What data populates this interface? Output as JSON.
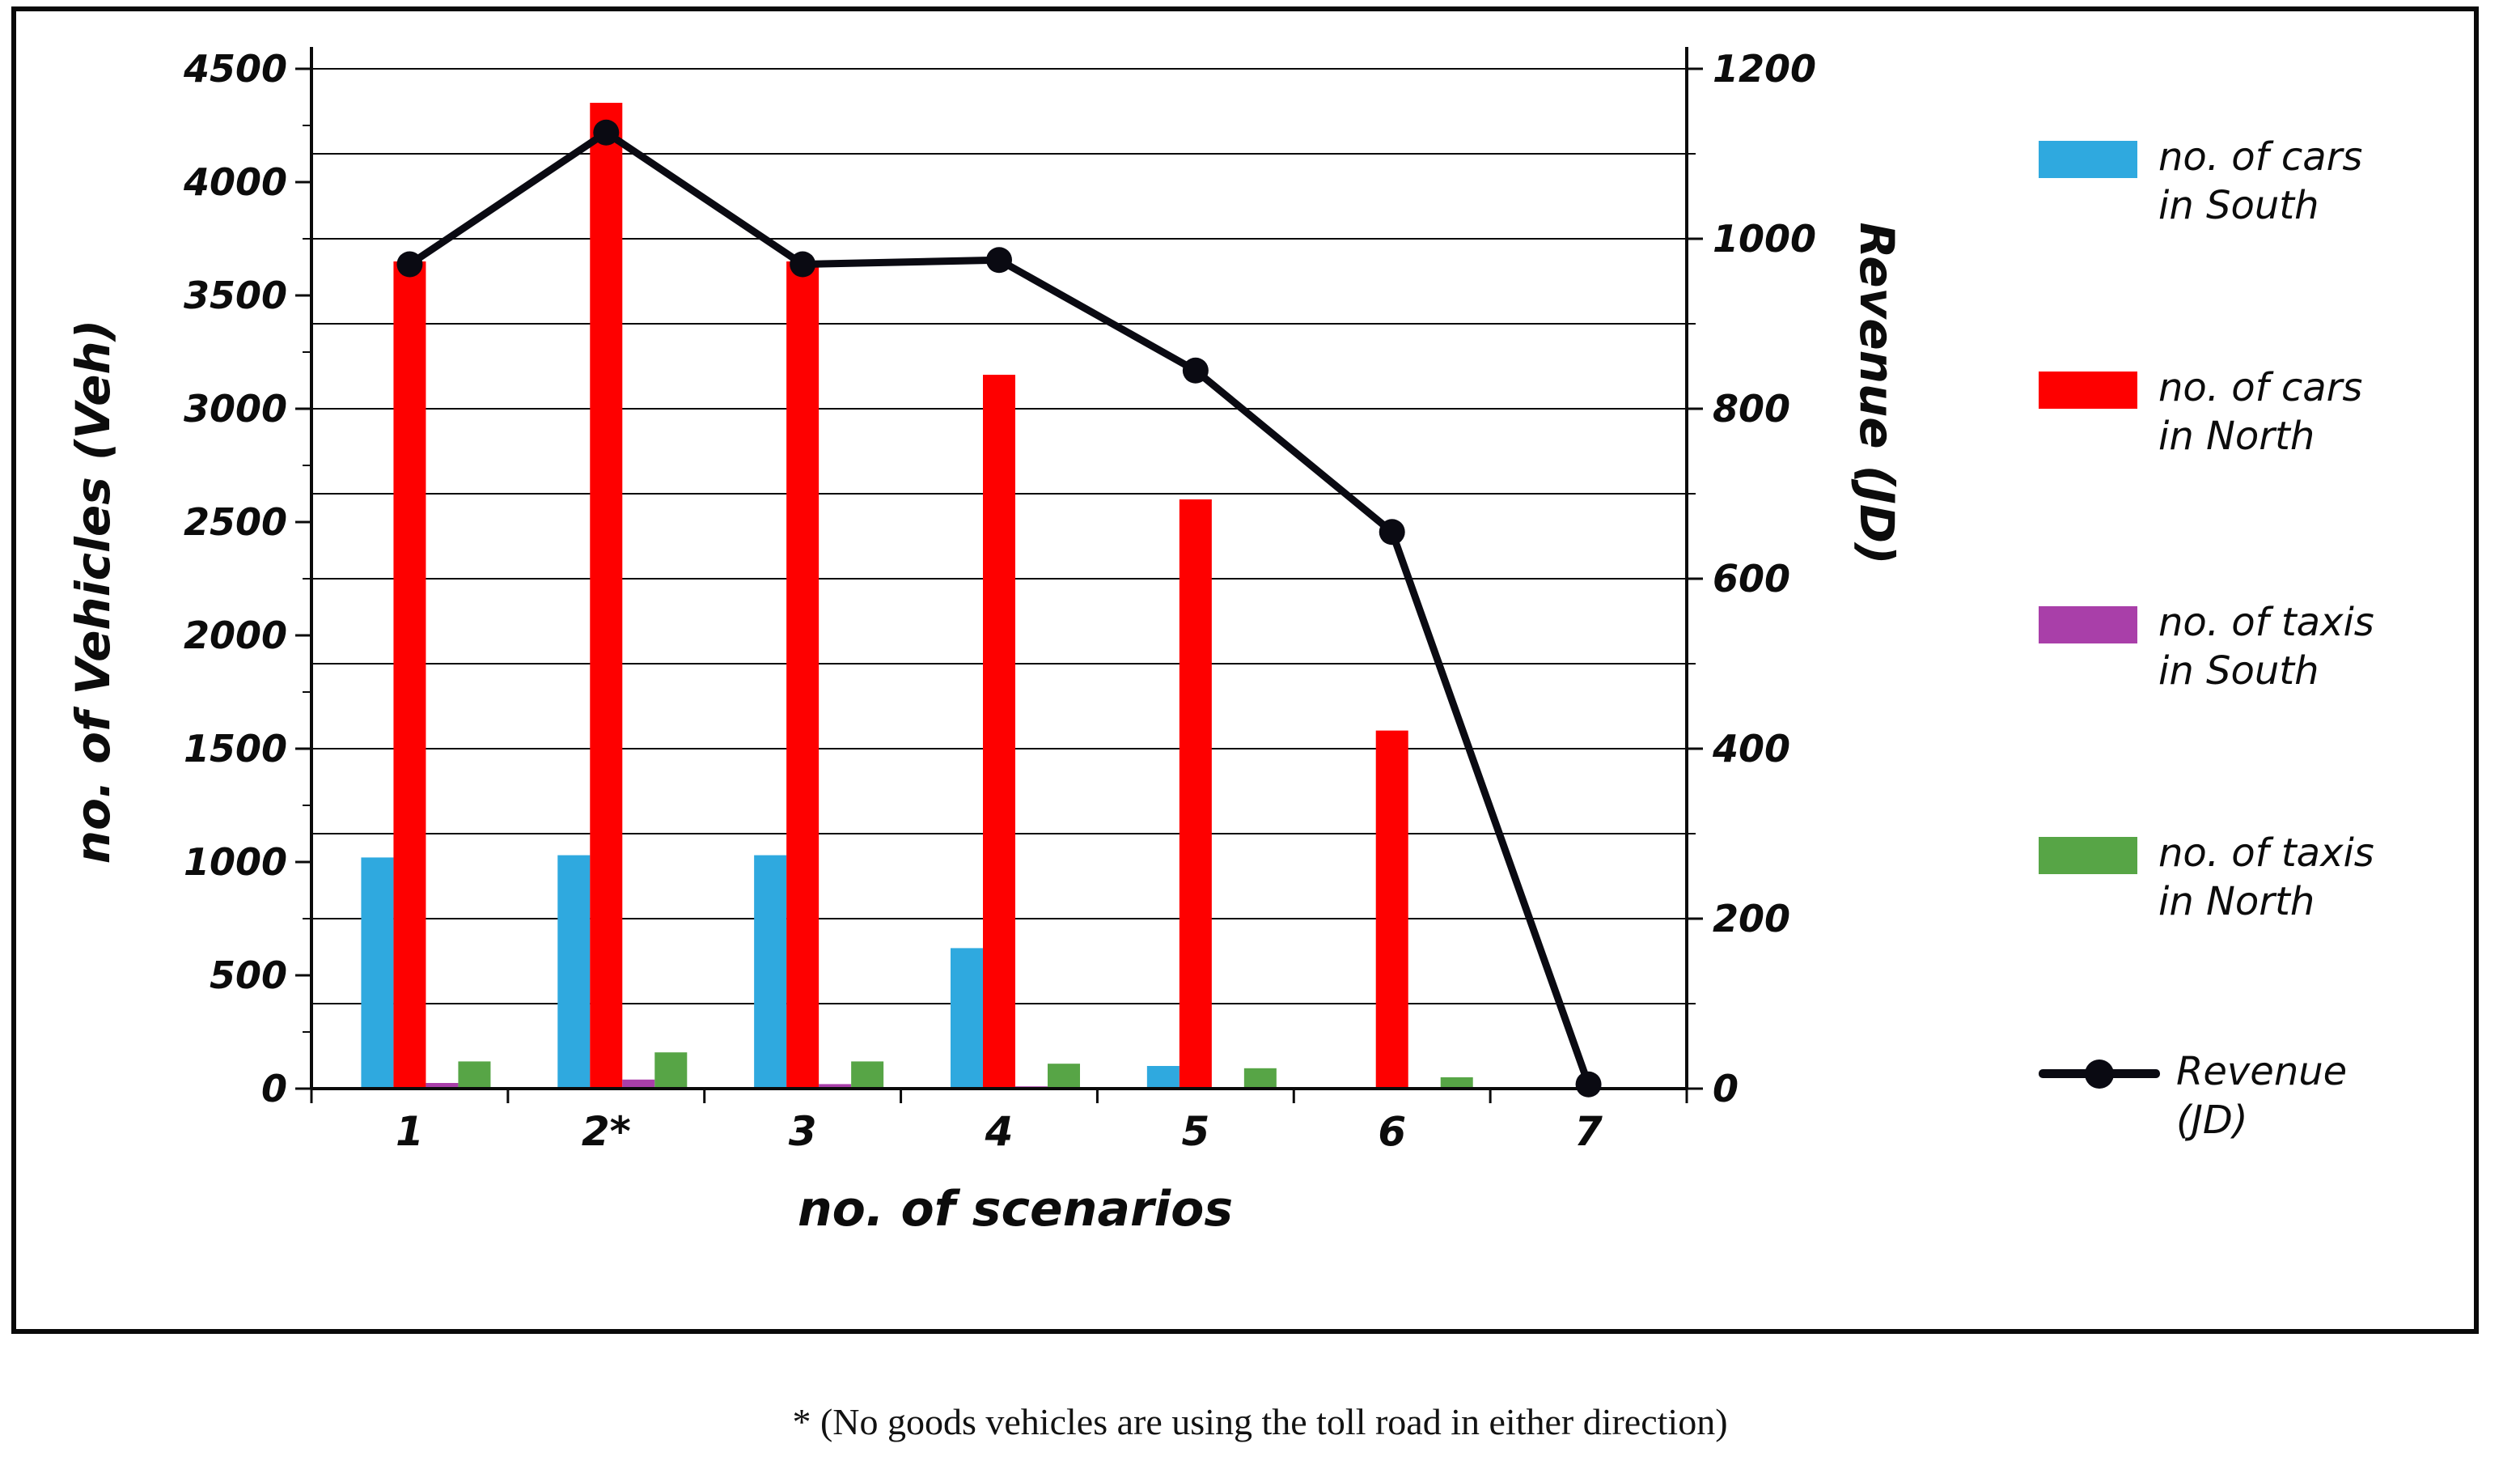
{
  "footnote": "* (No goods vehicles are using the toll road in either direction)",
  "chart_data": {
    "type": "bar",
    "subtype": "combo-bar-line",
    "title": "",
    "xlabel": "no. of scenarios",
    "categories": [
      "1",
      "2*",
      "3",
      "4",
      "5",
      "6",
      "7"
    ],
    "left_axis": {
      "label": "no. of Vehicles (Veh)",
      "min": 0,
      "max": 4500,
      "tick_step": 500
    },
    "right_axis": {
      "label": "Revenue (JD)",
      "min": 0,
      "max": 1200,
      "tick_step": 200
    },
    "gridlines": {
      "on": true,
      "axis": "right",
      "step": 100
    },
    "legend_position": "right",
    "series": [
      {
        "key": "cars-south",
        "name": "no. of cars in South",
        "type": "bar",
        "axis": "left",
        "color": "#2FA9DF",
        "values": [
          1020,
          1030,
          1030,
          620,
          100,
          0,
          0
        ]
      },
      {
        "key": "cars-north",
        "name": "no. of cars in North",
        "type": "bar",
        "axis": "left",
        "color": "#FE0000",
        "values": [
          3650,
          4350,
          3650,
          3150,
          2600,
          1580,
          0
        ]
      },
      {
        "key": "taxis-south",
        "name": "no. of taxis in South",
        "type": "bar",
        "axis": "left",
        "color": "#A93FA9",
        "values": [
          25,
          40,
          20,
          10,
          0,
          0,
          0
        ]
      },
      {
        "key": "taxis-north",
        "name": "no. of taxis in North",
        "type": "bar",
        "axis": "left",
        "color": "#57A546",
        "values": [
          120,
          160,
          120,
          110,
          90,
          50,
          0
        ]
      },
      {
        "key": "revenue",
        "name": "Revenue (JD)",
        "type": "line",
        "axis": "right",
        "color": "#0A0A12",
        "values": [
          970,
          1125,
          970,
          975,
          845,
          655,
          5
        ]
      }
    ]
  },
  "legend": {
    "items": [
      {
        "key": "cars-south",
        "label": "no. of cars\nin South",
        "color": "#2FA9DF",
        "marker": "bar"
      },
      {
        "key": "cars-north",
        "label": "no. of cars\nin North",
        "color": "#FE0000",
        "marker": "bar"
      },
      {
        "key": "taxis-south",
        "label": "no. of taxis\nin South",
        "color": "#A93FA9",
        "marker": "bar"
      },
      {
        "key": "taxis-north",
        "label": "no. of taxis\nin North",
        "color": "#57A546",
        "marker": "bar"
      },
      {
        "key": "revenue",
        "label": "Revenue\n(JD)",
        "color": "#0A0A12",
        "marker": "line"
      }
    ]
  }
}
